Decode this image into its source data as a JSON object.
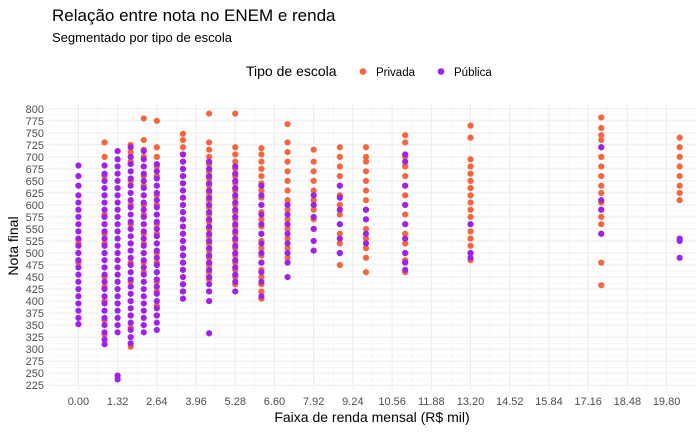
{
  "chart_data": {
    "type": "scatter",
    "title": "Relação entre nota no ENEM e renda",
    "subtitle": "Segmentado por tipo de escola",
    "xlabel": "Faixa de renda mensal (R$ mil)",
    "ylabel": "Nota final",
    "xlim": [
      -0.99,
      20.79
    ],
    "ylim": [
      215,
      810
    ],
    "x_ticks": [
      0.0,
      1.32,
      2.64,
      3.96,
      5.28,
      6.6,
      7.92,
      9.24,
      10.56,
      11.88,
      13.2,
      14.52,
      15.84,
      17.16,
      18.48,
      19.8
    ],
    "x_tick_labels": [
      "0.00",
      "1.32",
      "2.64",
      "3.96",
      "5.28",
      "6.60",
      "7.92",
      "9.24",
      "10.56",
      "11.88",
      "13.20",
      "14.52",
      "15.84",
      "17.16",
      "18.48",
      "19.80"
    ],
    "y_ticks": [
      225,
      250,
      275,
      300,
      325,
      350,
      375,
      400,
      425,
      450,
      475,
      500,
      525,
      550,
      575,
      600,
      625,
      650,
      675,
      700,
      725,
      750,
      775,
      800
    ],
    "grid": true,
    "legend": {
      "title": "Tipo de escola",
      "position": "top"
    },
    "series": [
      {
        "name": "Privada",
        "color": "#F8643C",
        "groups": [
          {
            "x": 0.0,
            "y": [
              640,
              528,
              520,
              500,
              480
            ]
          },
          {
            "x": 0.88,
            "y": [
              730,
              700,
              660,
              620,
              580,
              560,
              540,
              520,
              500,
              470,
              450,
              430,
              400,
              360,
              330
            ]
          },
          {
            "x": 1.76,
            "y": [
              725,
              710,
              690,
              650,
              600,
              560,
              520,
              480,
              440,
              400,
              370,
              345,
              305
            ]
          },
          {
            "x": 2.2,
            "y": [
              780,
              735,
              715,
              700,
              680,
              660,
              640,
              620,
              600,
              580,
              560,
              540,
              520,
              500,
              480,
              460,
              440
            ]
          },
          {
            "x": 2.64,
            "y": [
              775,
              720,
              700,
              680,
              660,
              640,
              620,
              600,
              580,
              560,
              540,
              520,
              500,
              480,
              460,
              440,
              420,
              390,
              370
            ]
          },
          {
            "x": 3.52,
            "y": [
              748,
              735,
              720,
              705,
              690,
              675,
              660,
              645,
              630,
              615,
              600,
              585,
              570,
              555,
              540,
              525,
              510,
              495,
              480,
              465,
              450,
              435,
              420,
              405
            ]
          },
          {
            "x": 4.4,
            "y": [
              790,
              730,
              715,
              700,
              685,
              670,
              655,
              640,
              625,
              610,
              595,
              580,
              565,
              550,
              535,
              520,
              505,
              490,
              475,
              460,
              445,
              420,
              400
            ]
          },
          {
            "x": 5.28,
            "y": [
              790,
              720,
              705,
              690,
              675,
              660,
              645,
              630,
              615,
              600,
              585,
              570,
              555,
              540,
              525,
              510,
              495,
              480,
              465,
              450,
              435
            ]
          },
          {
            "x": 6.16,
            "y": [
              718,
              705,
              690,
              675,
              660,
              645,
              630,
              615,
              600,
              585,
              570,
              555,
              540,
              525,
              510,
              495,
              480,
              465,
              450,
              435,
              420,
              405
            ]
          },
          {
            "x": 7.04,
            "y": [
              768,
              730,
              710,
              690,
              670,
              650,
              630,
              610,
              590,
              570,
              550,
              530,
              510,
              490
            ]
          },
          {
            "x": 7.92,
            "y": [
              715,
              690,
              670,
              650,
              630,
              610,
              590,
              570,
              550
            ]
          },
          {
            "x": 8.8,
            "y": [
              720,
              700,
              680,
              660,
              640,
              620,
              600,
              580,
              560,
              540,
              520,
              500,
              475
            ]
          },
          {
            "x": 9.68,
            "y": [
              720,
              700,
              690,
              670,
              650,
              630,
              610,
              590,
              570,
              550,
              530,
              510,
              490,
              460
            ]
          },
          {
            "x": 11.0,
            "y": [
              745,
              730,
              700,
              680,
              660,
              640,
              620,
              600,
              580,
              560,
              540,
              520,
              500,
              485,
              460
            ]
          },
          {
            "x": 13.2,
            "y": [
              765,
              740,
              695,
              680,
              665,
              650,
              635,
              620,
              605,
              590,
              575,
              560,
              545,
              530,
              515,
              500,
              485
            ]
          },
          {
            "x": 17.6,
            "y": [
              782,
              760,
              745,
              735,
              720,
              700,
              680,
              660,
              640,
              625,
              605,
              590,
              575,
              560,
              540,
              480,
              433
            ]
          },
          {
            "x": 20.24,
            "y": [
              740,
              720,
              700,
              680,
              660,
              640,
              625,
              610
            ]
          }
        ]
      },
      {
        "name": "Pública",
        "color": "#A020F0",
        "groups": [
          {
            "x": 0.0,
            "y": [
              682,
              660,
              640,
              620,
              605,
              590,
              575,
              560,
              545,
              530,
              515,
              500,
              485,
              470,
              455,
              440,
              425,
              410,
              395,
              380,
              365,
              352
            ]
          },
          {
            "x": 0.88,
            "y": [
              682,
              665,
              650,
              635,
              620,
              605,
              590,
              575,
              560,
              545,
              530,
              515,
              500,
              485,
              470,
              455,
              440,
              425,
              410,
              395,
              380,
              365,
              350,
              335,
              320,
              310
            ]
          },
          {
            "x": 1.32,
            "y": [
              712,
              695,
              680,
              665,
              650,
              635,
              620,
              605,
              590,
              575,
              560,
              545,
              530,
              515,
              500,
              485,
              470,
              455,
              440,
              425,
              410,
              395,
              380,
              365,
              350,
              335,
              245,
              237
            ]
          },
          {
            "x": 1.76,
            "y": [
              720,
              700,
              685,
              670,
              655,
              640,
              625,
              610,
              595,
              580,
              565,
              550,
              535,
              520,
              505,
              490,
              475,
              460,
              445,
              430,
              415,
              400,
              385,
              370,
              355,
              340,
              325,
              312
            ]
          },
          {
            "x": 2.2,
            "y": [
              712,
              695,
              680,
              665,
              650,
              635,
              620,
              605,
              590,
              575,
              560,
              545,
              530,
              515,
              500,
              485,
              470,
              455,
              440,
              425,
              410,
              395,
              380,
              365,
              350,
              335
            ]
          },
          {
            "x": 2.64,
            "y": [
              685,
              670,
              655,
              640,
              625,
              610,
              595,
              580,
              565,
              550,
              535,
              520,
              505,
              490,
              475,
              460,
              445,
              430,
              415,
              400,
              385,
              370,
              355,
              340
            ]
          },
          {
            "x": 3.52,
            "y": [
              705,
              690,
              675,
              660,
              645,
              630,
              615,
              600,
              585,
              570,
              555,
              540,
              525,
              510,
              495,
              480,
              465,
              450,
              435,
              420,
              405
            ]
          },
          {
            "x": 4.4,
            "y": [
              690,
              675,
              660,
              645,
              630,
              615,
              600,
              585,
              570,
              555,
              540,
              525,
              510,
              495,
              480,
              465,
              450,
              435,
              420,
              400,
              333
            ]
          },
          {
            "x": 5.28,
            "y": [
              680,
              665,
              650,
              635,
              620,
              605,
              590,
              575,
              560,
              545,
              530,
              515,
              500,
              485,
              470,
              455,
              440,
              420
            ]
          },
          {
            "x": 6.16,
            "y": [
              640,
              620,
              600,
              580,
              560,
              540,
              520,
              500,
              480,
              460,
              440,
              410
            ]
          },
          {
            "x": 7.04,
            "y": [
              600,
              580,
              560,
              540,
              520,
              500,
              480,
              450
            ]
          },
          {
            "x": 7.92,
            "y": [
              620,
              600,
              575,
              550,
              525,
              505
            ]
          },
          {
            "x": 8.8,
            "y": [
              640,
              615,
              590,
              560,
              530,
              500
            ]
          },
          {
            "x": 9.68,
            "y": [
              590,
              570,
              540,
              520
            ]
          },
          {
            "x": 11.0,
            "y": [
              705,
              690,
              640,
              600,
              560,
              530,
              500,
              480,
              465
            ]
          },
          {
            "x": 13.2,
            "y": [
              560,
              500,
              490
            ]
          },
          {
            "x": 17.6,
            "y": [
              720,
              610,
              590,
              540
            ]
          },
          {
            "x": 20.24,
            "y": [
              530,
              525,
              490
            ]
          }
        ]
      }
    ]
  }
}
